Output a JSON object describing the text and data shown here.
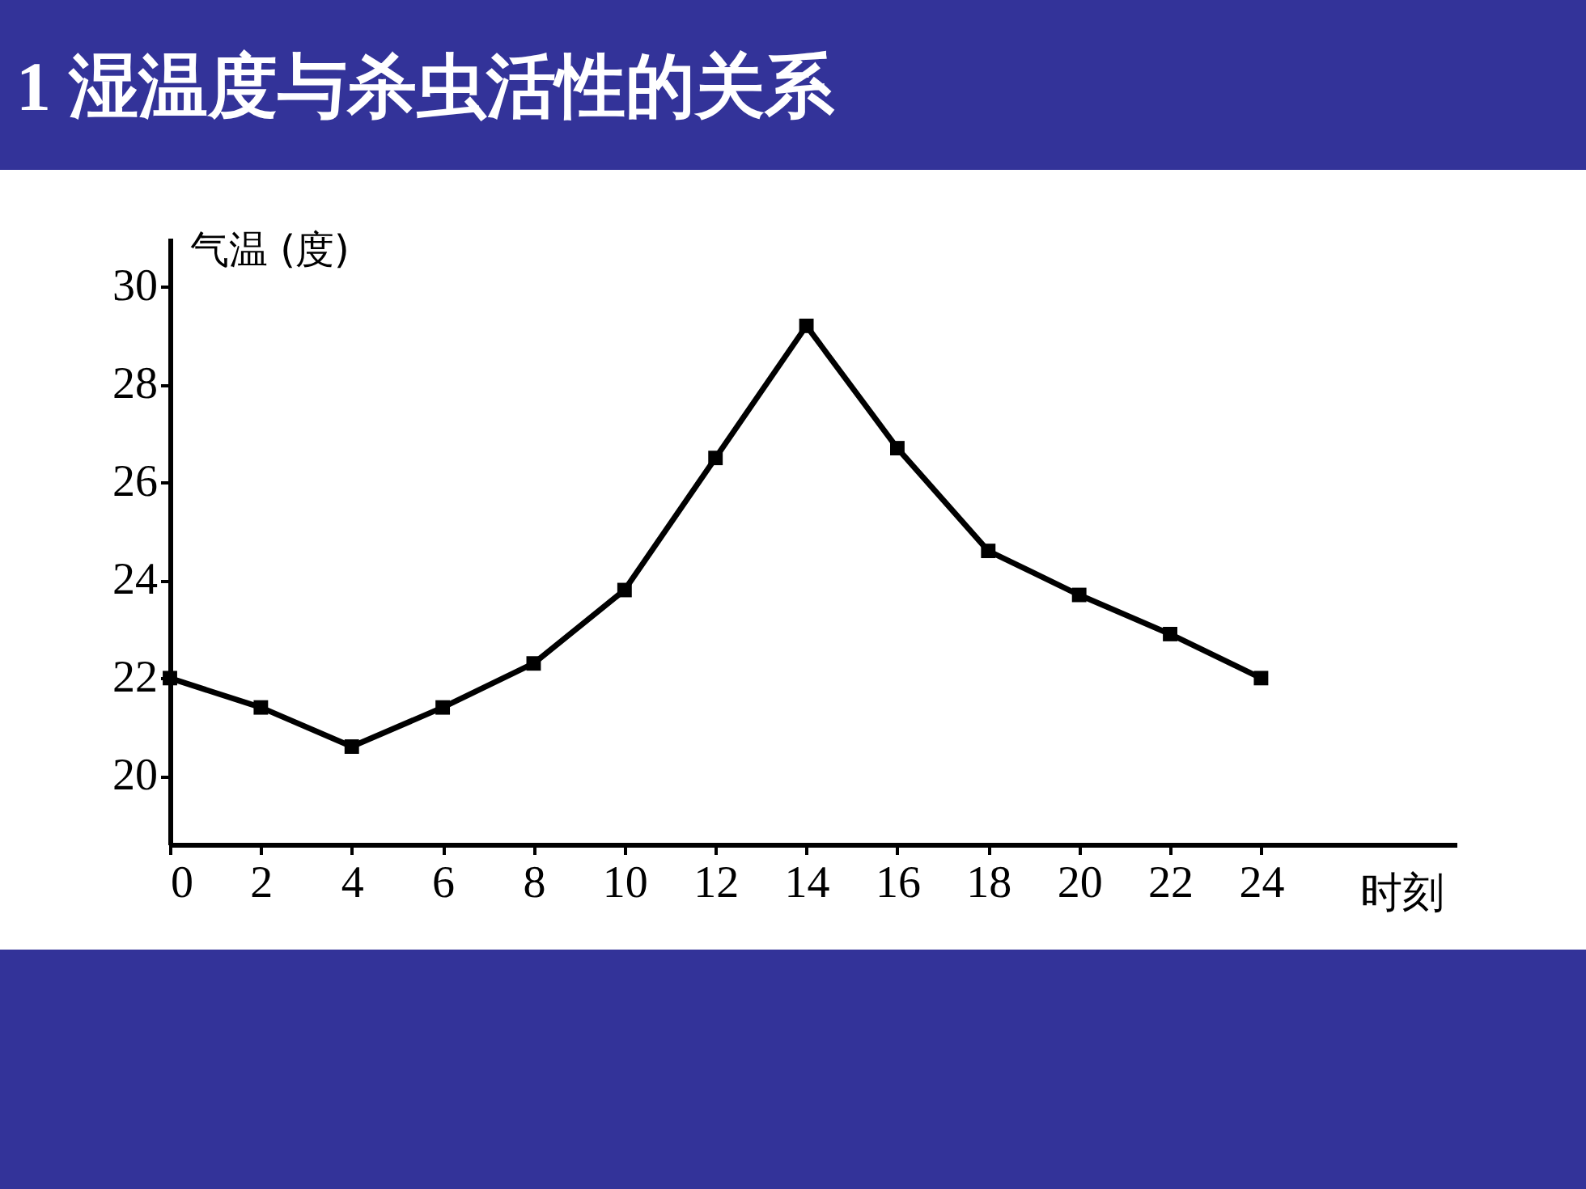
{
  "chart_data": {
    "type": "line",
    "title": "1 湿温度与杀虫活性的关系",
    "xlabel": "时刻",
    "ylabel": "气温 (度)",
    "x": [
      0,
      2,
      4,
      6,
      8,
      10,
      12,
      14,
      16,
      18,
      20,
      22,
      24
    ],
    "series": [
      {
        "color": "#000000",
        "values": [
          22.0,
          21.4,
          20.6,
          21.4,
          22.3,
          23.8,
          26.5,
          29.2,
          26.7,
          24.6,
          23.7,
          22.9,
          22.0
        ]
      }
    ],
    "xlim": [
      0,
      28.3
    ],
    "xticks": [
      0,
      2,
      4,
      6,
      8,
      10,
      12,
      14,
      16,
      18,
      20,
      22,
      24
    ],
    "ylim": [
      18.6,
      31
    ],
    "yticks": [
      20,
      22,
      24,
      26,
      28,
      30
    ],
    "marker": "square",
    "line_style": "solid"
  }
}
